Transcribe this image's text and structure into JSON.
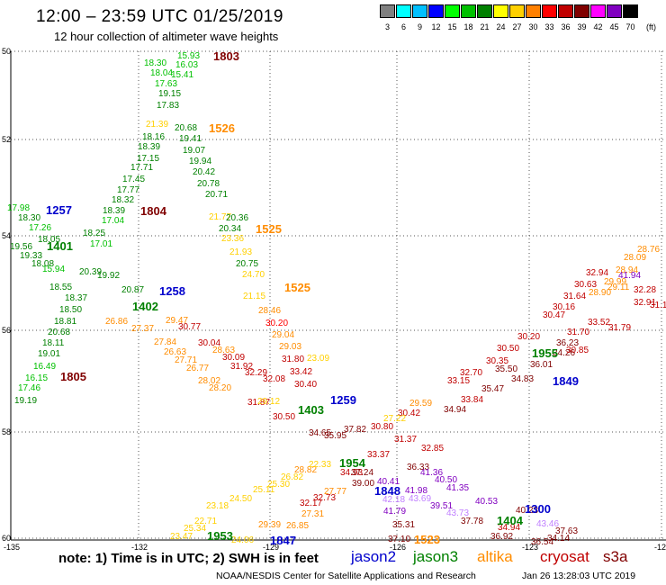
{
  "title": "12:00 – 23:59 UTC 01/25/2019",
  "subtitle": "12 hour collection of altimeter wave heights",
  "legend": {
    "colors": [
      "#808080",
      "#00ffff",
      "#00c0ff",
      "#0000ff",
      "#00ff00",
      "#00c000",
      "#008000",
      "#ffff00",
      "#ffd000",
      "#ff8000",
      "#ff0000",
      "#c00000",
      "#800000",
      "#ff00ff",
      "#8000c0",
      "#000000"
    ],
    "labels": [
      "3",
      "6",
      "9",
      "12",
      "15",
      "18",
      "21",
      "24",
      "27",
      "30",
      "33",
      "36",
      "39",
      "42",
      "45",
      "70"
    ],
    "units": "(ft)"
  },
  "axes": {
    "lat_labels": [
      "50",
      "52",
      "54",
      "56",
      "58",
      "60"
    ],
    "lon_labels": [
      "-135",
      "-132",
      "-129",
      "-126",
      "-123",
      "-120"
    ]
  },
  "note": "note: 1) Time is in UTC; 2) SWH is in feet",
  "satellites": [
    {
      "name": "jason2",
      "color": "#0000cc"
    },
    {
      "name": "jason3",
      "color": "#008000"
    },
    {
      "name": "altika",
      "color": "#ff8c00"
    },
    {
      "name": "cryosat",
      "color": "#c00000"
    },
    {
      "name": "s3a",
      "color": "#800000"
    }
  ],
  "credit": "NOAA/NESDIS Center for Satellite Applications and Research",
  "timestamp": "Jan 26 13:28:03 UTC 2019",
  "pass_times": [
    {
      "text": "1803",
      "color": "#800000"
    },
    {
      "text": "1526",
      "color": "#ff8c00"
    },
    {
      "text": "1257",
      "color": "#0000cc"
    },
    {
      "text": "1804",
      "color": "#800000"
    },
    {
      "text": "1525",
      "color": "#ff8c00"
    },
    {
      "text": "1401",
      "color": "#008000"
    },
    {
      "text": "1525",
      "color": "#ff8c00"
    },
    {
      "text": "1258",
      "color": "#0000cc"
    },
    {
      "text": "1402",
      "color": "#008000"
    },
    {
      "text": "1805",
      "color": "#800000"
    },
    {
      "text": "1259",
      "color": "#0000cc"
    },
    {
      "text": "1403",
      "color": "#008000"
    },
    {
      "text": "1954",
      "color": "#008000"
    },
    {
      "text": "1848",
      "color": "#0000cc"
    },
    {
      "text": "1955",
      "color": "#008000"
    },
    {
      "text": "1849",
      "color": "#0000cc"
    },
    {
      "text": "1300",
      "color": "#0000cc"
    },
    {
      "text": "1404",
      "color": "#008000"
    },
    {
      "text": "1953",
      "color": "#008000"
    },
    {
      "text": "1847",
      "color": "#0000cc"
    },
    {
      "text": "1523",
      "color": "#ff8c00"
    }
  ],
  "wave_labels": [
    {
      "text": "15.93",
      "color": "#00c000"
    },
    {
      "text": "18.30",
      "color": "#00c000"
    },
    {
      "text": "16.03",
      "color": "#00c000"
    },
    {
      "text": "18.04",
      "color": "#00c000"
    },
    {
      "text": "15.41",
      "color": "#00c000"
    },
    {
      "text": "17.63",
      "color": "#00c000"
    },
    {
      "text": "19.15",
      "color": "#008000"
    },
    {
      "text": "17.83",
      "color": "#008000"
    },
    {
      "text": "21.39",
      "color": "#ffd000"
    },
    {
      "text": "20.68",
      "color": "#008000"
    },
    {
      "text": "18.16",
      "color": "#008000"
    },
    {
      "text": "19.41",
      "color": "#008000"
    },
    {
      "text": "18.39",
      "color": "#008000"
    },
    {
      "text": "19.07",
      "color": "#008000"
    },
    {
      "text": "17.15",
      "color": "#008000"
    },
    {
      "text": "19.94",
      "color": "#008000"
    },
    {
      "text": "17.71",
      "color": "#008000"
    },
    {
      "text": "20.42",
      "color": "#008000"
    },
    {
      "text": "17.45",
      "color": "#008000"
    },
    {
      "text": "20.78",
      "color": "#008000"
    },
    {
      "text": "17.77",
      "color": "#008000"
    },
    {
      "text": "20.71",
      "color": "#008000"
    },
    {
      "text": "18.32",
      "color": "#008000"
    },
    {
      "text": "21.77",
      "color": "#ffd000"
    },
    {
      "text": "18.39",
      "color": "#008000"
    },
    {
      "text": "17.04",
      "color": "#00c000"
    },
    {
      "text": "20.34",
      "color": "#008000"
    },
    {
      "text": "18.25",
      "color": "#008000"
    },
    {
      "text": "18.30",
      "color": "#008000"
    },
    {
      "text": "17.26",
      "color": "#00c000"
    },
    {
      "text": "18.05",
      "color": "#008000"
    },
    {
      "text": "17.01",
      "color": "#00c000"
    },
    {
      "text": "19.56",
      "color": "#008000"
    },
    {
      "text": "19.33",
      "color": "#008000"
    },
    {
      "text": "18.08",
      "color": "#008000"
    },
    {
      "text": "15.94",
      "color": "#00c000"
    },
    {
      "text": "20.75",
      "color": "#008000"
    },
    {
      "text": "24.70",
      "color": "#ffd000"
    },
    {
      "text": "18.55",
      "color": "#008000"
    },
    {
      "text": "18.37",
      "color": "#008000"
    },
    {
      "text": "20.87",
      "color": "#008000"
    },
    {
      "text": "18.50",
      "color": "#008000"
    },
    {
      "text": "18.81",
      "color": "#008000"
    },
    {
      "text": "20.68",
      "color": "#008000"
    },
    {
      "text": "18.11",
      "color": "#008000"
    },
    {
      "text": "19.01",
      "color": "#008000"
    },
    {
      "text": "16.49",
      "color": "#00c000"
    },
    {
      "text": "16.15",
      "color": "#00c000"
    },
    {
      "text": "17.46",
      "color": "#00c000"
    },
    {
      "text": "19.19",
      "color": "#008000"
    },
    {
      "text": "28.46",
      "color": "#ff8c00"
    },
    {
      "text": "30.20",
      "color": "#ff0000"
    },
    {
      "text": "29.04",
      "color": "#ff8c00"
    },
    {
      "text": "29.03",
      "color": "#ff8c00"
    },
    {
      "text": "30.77",
      "color": "#c00000"
    },
    {
      "text": "30.04",
      "color": "#c00000"
    },
    {
      "text": "28.63",
      "color": "#ff8c00"
    },
    {
      "text": "30.09",
      "color": "#c00000"
    },
    {
      "text": "31.92",
      "color": "#c00000"
    },
    {
      "text": "32.29",
      "color": "#c00000"
    },
    {
      "text": "32.08",
      "color": "#c00000"
    },
    {
      "text": "33.42",
      "color": "#c00000"
    },
    {
      "text": "31.80",
      "color": "#c00000"
    },
    {
      "text": "30.40",
      "color": "#c00000"
    },
    {
      "text": "31.87",
      "color": "#c00000"
    },
    {
      "text": "29.12",
      "color": "#ffd000"
    },
    {
      "text": "30.50",
      "color": "#c00000"
    },
    {
      "text": "27.84",
      "color": "#ff8c00"
    },
    {
      "text": "26.63",
      "color": "#ff8c00"
    },
    {
      "text": "27.71",
      "color": "#ff8c00"
    },
    {
      "text": "26.77",
      "color": "#ff8c00"
    },
    {
      "text": "28.02",
      "color": "#ff8c00"
    },
    {
      "text": "28.20",
      "color": "#ff8c00"
    },
    {
      "text": "27.37",
      "color": "#ff8c00"
    },
    {
      "text": "26.86",
      "color": "#ff8c00"
    },
    {
      "text": "29.47",
      "color": "#ff8c00"
    },
    {
      "text": "37.82",
      "color": "#800000"
    },
    {
      "text": "30.80",
      "color": "#c00000"
    },
    {
      "text": "35.95",
      "color": "#800000"
    },
    {
      "text": "34.65",
      "color": "#800000"
    },
    {
      "text": "36.33",
      "color": "#800000"
    },
    {
      "text": "30.42",
      "color": "#c00000"
    },
    {
      "text": "29.59",
      "color": "#ff8c00"
    },
    {
      "text": "27.22",
      "color": "#ffd000"
    },
    {
      "text": "31.37",
      "color": "#c00000"
    },
    {
      "text": "32.85",
      "color": "#c00000"
    },
    {
      "text": "33.15",
      "color": "#c00000"
    },
    {
      "text": "32.70",
      "color": "#c00000"
    },
    {
      "text": "30.35",
      "color": "#c00000"
    },
    {
      "text": "30.50",
      "color": "#c00000"
    },
    {
      "text": "30.20",
      "color": "#c00000"
    },
    {
      "text": "30.47",
      "color": "#c00000"
    },
    {
      "text": "30.16",
      "color": "#c00000"
    },
    {
      "text": "31.64",
      "color": "#c00000"
    },
    {
      "text": "30.63",
      "color": "#c00000"
    },
    {
      "text": "32.94",
      "color": "#c00000"
    },
    {
      "text": "34.94",
      "color": "#800000"
    },
    {
      "text": "33.84",
      "color": "#c00000"
    },
    {
      "text": "35.47",
      "color": "#800000"
    },
    {
      "text": "35.50",
      "color": "#800000"
    },
    {
      "text": "34.83",
      "color": "#800000"
    },
    {
      "text": "36.01",
      "color": "#800000"
    },
    {
      "text": "34.26",
      "color": "#800000"
    },
    {
      "text": "36.23",
      "color": "#800000"
    },
    {
      "text": "30.85",
      "color": "#c00000"
    },
    {
      "text": "31.70",
      "color": "#c00000"
    },
    {
      "text": "33.52",
      "color": "#c00000"
    },
    {
      "text": "31.79",
      "color": "#c00000"
    },
    {
      "text": "32.28",
      "color": "#c00000"
    },
    {
      "text": "32.91",
      "color": "#c00000"
    },
    {
      "text": "31.13",
      "color": "#c00000"
    },
    {
      "text": "29.99",
      "color": "#ff8c00"
    },
    {
      "text": "28.94",
      "color": "#ff8c00"
    },
    {
      "text": "28.09",
      "color": "#ff8c00"
    },
    {
      "text": "28.76",
      "color": "#ff8c00"
    },
    {
      "text": "29.11",
      "color": "#ff8c00"
    },
    {
      "text": "28.90",
      "color": "#ff8c00"
    },
    {
      "text": "41.94",
      "color": "#8000c0"
    },
    {
      "text": "41.36",
      "color": "#8000c0"
    },
    {
      "text": "40.50",
      "color": "#8000c0"
    },
    {
      "text": "41.35",
      "color": "#8000c0"
    },
    {
      "text": "40.41",
      "color": "#8000c0"
    },
    {
      "text": "41.98",
      "color": "#8000c0"
    },
    {
      "text": "39.51",
      "color": "#8000c0"
    },
    {
      "text": "40.53",
      "color": "#8000c0"
    },
    {
      "text": "40.23",
      "color": "#800000"
    },
    {
      "text": "34.94",
      "color": "#c00000"
    },
    {
      "text": "36.92",
      "color": "#800000"
    },
    {
      "text": "36.54",
      "color": "#800000"
    },
    {
      "text": "34.14",
      "color": "#800000"
    },
    {
      "text": "37.63",
      "color": "#800000"
    },
    {
      "text": "43.46",
      "color": "#c080ff"
    },
    {
      "text": "41.79",
      "color": "#8000c0"
    },
    {
      "text": "35.31",
      "color": "#800000"
    },
    {
      "text": "37.10",
      "color": "#800000"
    },
    {
      "text": "42.18",
      "color": "#c080ff"
    },
    {
      "text": "43.69",
      "color": "#c080ff"
    },
    {
      "text": "43.73",
      "color": "#c080ff"
    },
    {
      "text": "37.78",
      "color": "#800000"
    },
    {
      "text": "34.93",
      "color": "#c00000"
    },
    {
      "text": "39.00",
      "color": "#800000"
    },
    {
      "text": "37.24",
      "color": "#800000"
    },
    {
      "text": "33.37",
      "color": "#c00000"
    },
    {
      "text": "32.17",
      "color": "#c00000"
    },
    {
      "text": "32.73",
      "color": "#c00000"
    },
    {
      "text": "27.77",
      "color": "#ff8c00"
    },
    {
      "text": "27.31",
      "color": "#ff8c00"
    },
    {
      "text": "26.85",
      "color": "#ff8c00"
    },
    {
      "text": "29.39",
      "color": "#ff8c00"
    },
    {
      "text": "24.06",
      "color": "#ffd000"
    },
    {
      "text": "25.34",
      "color": "#ffd000"
    },
    {
      "text": "22.71",
      "color": "#ffd000"
    },
    {
      "text": "23.47",
      "color": "#ffd000"
    },
    {
      "text": "23.18",
      "color": "#ffd000"
    },
    {
      "text": "24.50",
      "color": "#ffd000"
    },
    {
      "text": "25.11",
      "color": "#ffd000"
    },
    {
      "text": "25.30",
      "color": "#ffd000"
    },
    {
      "text": "26.82",
      "color": "#ffd000"
    },
    {
      "text": "28.82",
      "color": "#ff8c00"
    },
    {
      "text": "22.33",
      "color": "#ffd000"
    },
    {
      "text": "23.09",
      "color": "#ffd000"
    },
    {
      "text": "23.36",
      "color": "#ffd000"
    },
    {
      "text": "21.93",
      "color": "#ffd000"
    },
    {
      "text": "21.15",
      "color": "#ffd000"
    },
    {
      "text": "20.36",
      "color": "#008000"
    },
    {
      "text": "17.98",
      "color": "#00c000"
    },
    {
      "text": "19.92",
      "color": "#008000"
    },
    {
      "text": "20.39",
      "color": "#008000"
    }
  ]
}
